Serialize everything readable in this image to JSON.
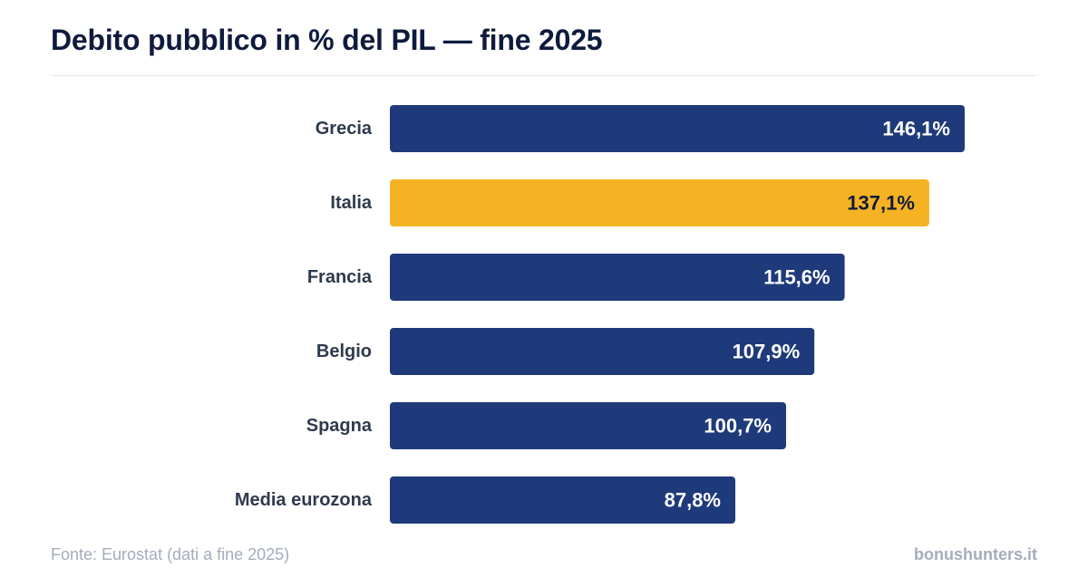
{
  "header": {
    "title": "Debito pubblico in % del PIL — fine 2025"
  },
  "chart_data": {
    "type": "bar",
    "orientation": "horizontal",
    "title": "Debito pubblico in % del PIL — fine 2025",
    "categories": [
      "Grecia",
      "Italia",
      "Francia",
      "Belgio",
      "Spagna",
      "Media eurozona"
    ],
    "values": [
      146.1,
      137.1,
      115.6,
      107.9,
      100.7,
      87.8
    ],
    "value_labels": [
      "146,1%",
      "137,1%",
      "115,6%",
      "107,9%",
      "100,7%",
      "87,8%"
    ],
    "highlight_category": "Italia",
    "xlim": [
      0,
      165
    ],
    "grid": false,
    "legend": "none"
  },
  "colors": {
    "bar_default": "#1f3a7a",
    "bar_highlight": "#f5b324",
    "label_on_default": "#ffffff",
    "label_on_highlight": "#0f1b3d"
  },
  "footer": {
    "source": "Fonte: Eurostat (dati a fine 2025)",
    "brand": "bonushunters.it"
  }
}
